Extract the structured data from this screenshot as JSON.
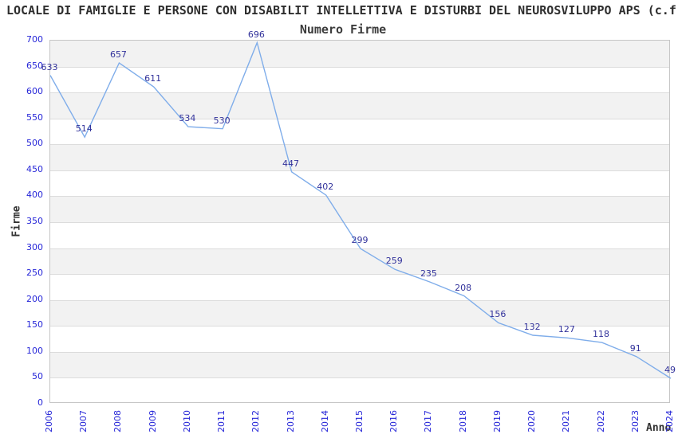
{
  "header": {
    "title": "LOCALE DI FAMIGLIE E PERSONE CON DISABILIT INTELLETTIVA E DISTURBI DEL NEUROSVILUPPO APS (c.f.",
    "subtitle": "Numero Firme"
  },
  "chart_data": {
    "type": "line",
    "title": "LOCALE DI FAMIGLIE E PERSONE CON DISABILIT INTELLETTIVA E DISTURBI DEL NEUROSVILUPPO APS (c.f.",
    "subtitle": "Numero Firme",
    "xlabel": "Anno",
    "ylabel": "Firme",
    "categories": [
      "2006",
      "2007",
      "2008",
      "2009",
      "2010",
      "2011",
      "2012",
      "2013",
      "2014",
      "2015",
      "2016",
      "2017",
      "2018",
      "2019",
      "2020",
      "2021",
      "2022",
      "2023",
      "2024"
    ],
    "series": [
      {
        "name": "Numero Firme",
        "values": [
          633,
          514,
          657,
          611,
          534,
          530,
          696,
          447,
          402,
          299,
          259,
          235,
          208,
          156,
          132,
          127,
          118,
          91,
          49
        ]
      }
    ],
    "ylim": [
      0,
      700
    ],
    "ytick_step": 50,
    "grid": true,
    "banded_background": true,
    "legend_position": "none",
    "show_value_labels": true,
    "colors": {
      "line": "#7fadea",
      "tick_label": "#2626d8",
      "value_label": "#32329b",
      "band": "#f2f2f2",
      "gridline": "#dcdcdc",
      "plot_border": "#c6c6c6",
      "title_text": "#2e2e2e"
    }
  }
}
